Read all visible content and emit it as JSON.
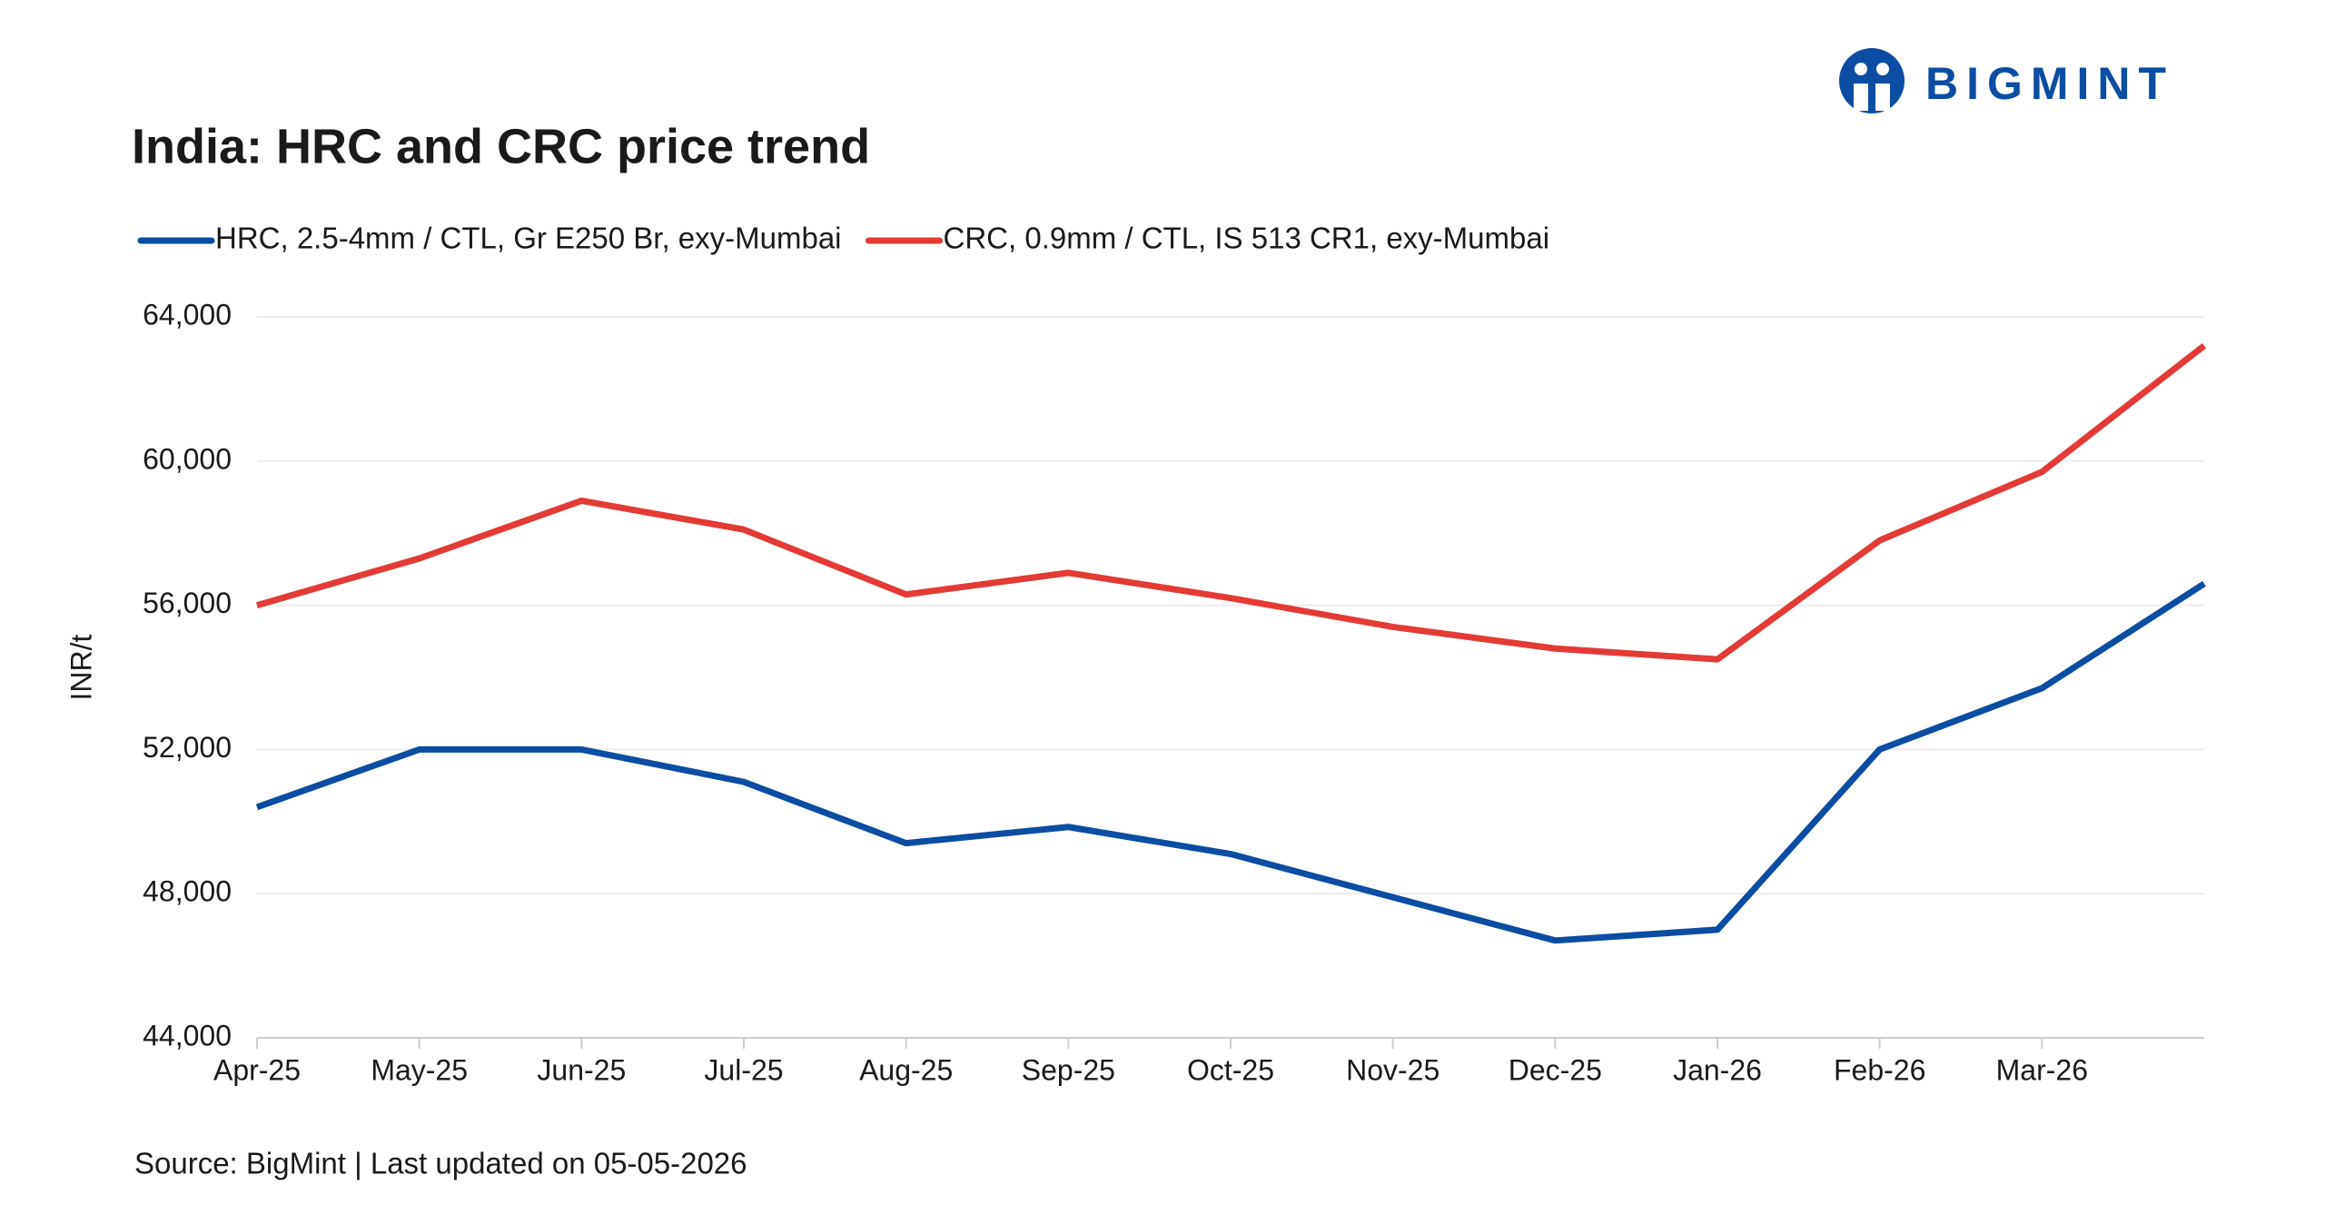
{
  "brand": "BIGMINT",
  "chart_data": {
    "type": "line",
    "title": "India: HRC and CRC price trend",
    "y_label": "INR/t",
    "source": "Source: BigMint | Last updated on  05-05-2026",
    "categories": [
      "Apr-25",
      "May-25",
      "Jun-25",
      "Jul-25",
      "Aug-25",
      "Sep-25",
      "Oct-25",
      "Nov-25",
      "Dec-25",
      "Jan-26",
      "Feb-26",
      "Mar-26",
      null
    ],
    "series": [
      {
        "name": "HRC, 2.5-4mm / CTL, Gr E250 Br, exy-Mumbai",
        "color": "#0a4da2",
        "values": [
          50400,
          52000,
          52000,
          51100,
          49400,
          49850,
          49100,
          47900,
          46700,
          47000,
          52000,
          53700,
          56600
        ]
      },
      {
        "name": "CRC, 0.9mm / CTL, IS 513 CR1, exy-Mumbai",
        "color": "#e33a36",
        "values": [
          56000,
          57300,
          58900,
          58100,
          56300,
          56900,
          56200,
          55400,
          54800,
          54500,
          57800,
          59700,
          63200
        ]
      }
    ],
    "ylim": [
      44000,
      64000
    ],
    "yticks": [
      {
        "value": 44000,
        "label": "44,000"
      },
      {
        "value": 48000,
        "label": "48,000"
      },
      {
        "value": 52000,
        "label": "52,000"
      },
      {
        "value": 56000,
        "label": "56,000"
      },
      {
        "value": 60000,
        "label": "60,000"
      },
      {
        "value": 64000,
        "label": "64,000"
      }
    ],
    "grid": true
  }
}
